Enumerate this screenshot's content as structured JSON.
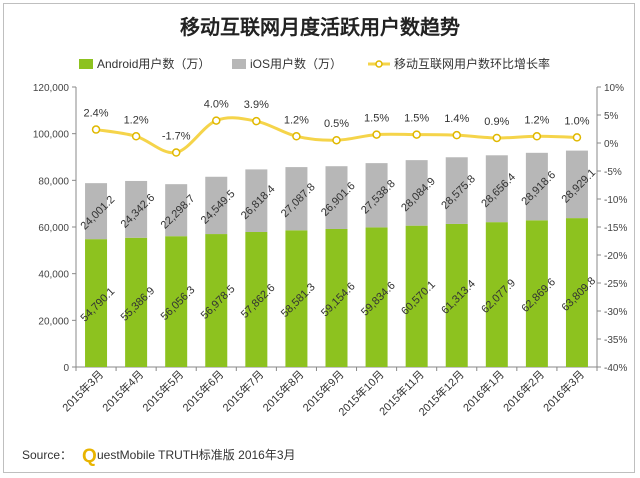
{
  "chart_data": {
    "type": "bar",
    "title": "移动互联网月度活跃用户数趋势",
    "categories": [
      "2015年3月",
      "2015年4月",
      "2015年5月",
      "2015年6月",
      "2015年7月",
      "2015年8月",
      "2015年9月",
      "2015年10月",
      "2015年11月",
      "2015年12月",
      "2016年1月",
      "2016年2月",
      "2016年3月"
    ],
    "series": [
      {
        "name": "Android用户数（万）",
        "type": "stacked-bar",
        "color": "#8dc21f",
        "values": [
          54790.1,
          55386.9,
          56056.3,
          56978.5,
          57862.6,
          58581.3,
          59154.6,
          59834.6,
          60570.1,
          61313.4,
          62077.9,
          62869.6,
          63809.8
        ],
        "labels": [
          "54,790.1",
          "55,386.9",
          "56,056.3",
          "56,978.5",
          "57,862.6",
          "58,581.3",
          "59,154.6",
          "59,834.6",
          "60,570.1",
          "61,313.4",
          "62,077.9",
          "62,869.6",
          "63,809.8"
        ]
      },
      {
        "name": "iOS用户数（万）",
        "type": "stacked-bar",
        "color": "#b7b7b7",
        "values": [
          24001.2,
          24342.6,
          22298.7,
          24549.5,
          26818.4,
          27087.8,
          26901.6,
          27538.8,
          28084.9,
          28575.8,
          28656.4,
          28918.6,
          28929.1
        ],
        "labels": [
          "24,001.2",
          "24,342.6",
          "22,298.7",
          "24,549.5",
          "26,818.4",
          "27,087.8",
          "26,901.6",
          "27,538.8",
          "28,084.9",
          "28,575.8",
          "28,656.4",
          "28,918.6",
          "28,929.1"
        ]
      },
      {
        "name": "移动互联网用户数环比增长率",
        "type": "line",
        "axis": "right",
        "color": "#f5d44a",
        "values": [
          2.4,
          1.2,
          -1.7,
          4.0,
          3.9,
          1.2,
          0.5,
          1.5,
          1.5,
          1.4,
          0.9,
          1.2,
          1.0
        ],
        "labels": [
          "2.4%",
          "1.2%",
          "-1.7%",
          "4.0%",
          "3.9%",
          "1.2%",
          "0.5%",
          "1.5%",
          "1.5%",
          "1.4%",
          "0.9%",
          "1.2%",
          "1.0%"
        ]
      }
    ],
    "ylim_left": [
      0,
      120000
    ],
    "yticks_left": [
      "0",
      "20,000",
      "40,000",
      "60,000",
      "80,000",
      "100,000",
      "120,000"
    ],
    "ylim_right": [
      -40,
      10
    ],
    "yticks_right": [
      "-40%",
      "-35%",
      "-30%",
      "-25%",
      "-20%",
      "-15%",
      "-10%",
      "-5%",
      "0%",
      "5%",
      "10%"
    ],
    "legend_position": "top",
    "grid": false
  },
  "source": {
    "prefix": "Source：",
    "brand_initial": "Q",
    "text": "uestMobile TRUTH标准版 2016年3月"
  }
}
